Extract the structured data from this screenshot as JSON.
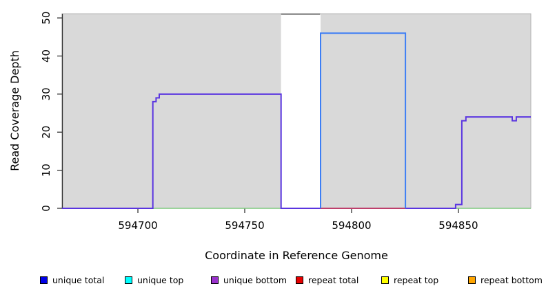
{
  "chart_data": {
    "type": "line",
    "title": "",
    "xlabel": "Coordinate in Reference Genome",
    "ylabel": "Read Coverage Depth",
    "xlim": [
      594664.5,
      594883.9
    ],
    "ylim": [
      0,
      51.1
    ],
    "xticks": [
      594700,
      594750,
      594800,
      594850
    ],
    "yticks": [
      0,
      10,
      20,
      30,
      40,
      50
    ],
    "grid": "off",
    "plot_bg_color": "#d9d9d9",
    "plot_border_color": "#b5b5b5",
    "axis_color": "#333333",
    "uncovered_region": {
      "x0": 594767,
      "x1": 594785.5,
      "color": "#ffffff"
    },
    "series": [
      {
        "name": "baseline-green",
        "color": "#7dc87d",
        "width": 1.6,
        "points": [
          [
            594664.5,
            0
          ],
          [
            594883.9,
            0
          ]
        ]
      },
      {
        "name": "unique-bottom-trace",
        "color": "#5a35e0",
        "width": 2,
        "points": [
          [
            594664.5,
            0
          ],
          [
            594707,
            0
          ],
          [
            594707,
            28
          ],
          [
            594708.5,
            28
          ],
          [
            594708.5,
            29
          ],
          [
            594710,
            29
          ],
          [
            594710,
            30
          ],
          [
            594767,
            30
          ],
          [
            594767,
            0
          ],
          [
            594848.7,
            0
          ],
          [
            594848.7,
            1
          ],
          [
            594851.6,
            1
          ],
          [
            594851.6,
            23
          ],
          [
            594853.5,
            23
          ],
          [
            594853.5,
            24
          ],
          [
            594875.2,
            24
          ],
          [
            594875.2,
            23
          ],
          [
            594877.1,
            23
          ],
          [
            594877.1,
            24
          ],
          [
            594883.9,
            24
          ]
        ]
      },
      {
        "name": "repeat-total-baseline",
        "color": "#e04545",
        "width": 1.6,
        "points": [
          [
            594785.5,
            0
          ],
          [
            594825.2,
            0
          ]
        ]
      },
      {
        "name": "unique-total-pulse",
        "color": "#3d7ef5",
        "width": 2,
        "points": [
          [
            594785.5,
            0
          ],
          [
            594785.5,
            46
          ],
          [
            594825.2,
            46
          ],
          [
            594825.2,
            0
          ]
        ]
      },
      {
        "name": "clipped-depth-cap",
        "color": "#555555",
        "width": 1.6,
        "points": [
          [
            594767,
            51
          ],
          [
            594785.3,
            51
          ]
        ]
      }
    ],
    "legend": {
      "position": "bottom",
      "items": [
        {
          "label": "unique total",
          "color": "#0000e6"
        },
        {
          "label": "unique top",
          "color": "#00ffff"
        },
        {
          "label": "unique bottom",
          "color": "#9932cc"
        },
        {
          "label": "repeat total",
          "color": "#e60000"
        },
        {
          "label": "repeat top",
          "color": "#ffff00"
        },
        {
          "label": "repeat bottom",
          "color": "#ffa500"
        }
      ]
    }
  }
}
